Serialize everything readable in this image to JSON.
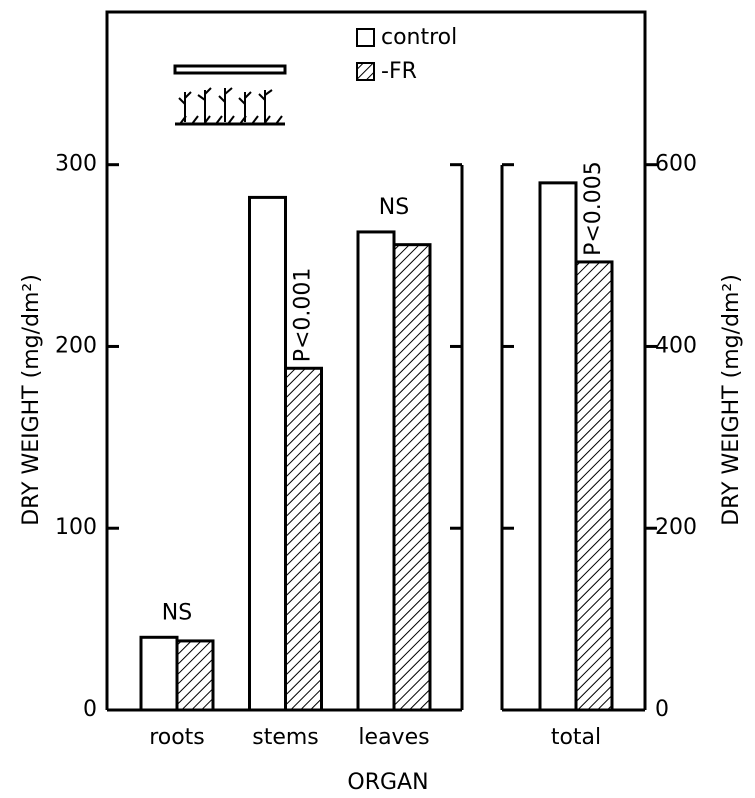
{
  "chart_data": [
    {
      "type": "bar",
      "ylabel": "DRY WEIGHT (mg/dm²)",
      "xlabel": "ORGAN",
      "categories": [
        "roots",
        "stems",
        "leaves"
      ],
      "series": [
        {
          "name": "control",
          "color": "#ffffff",
          "values": [
            40,
            282,
            263
          ]
        },
        {
          "name": "-FR",
          "color": "hatch",
          "values": [
            38,
            188,
            256
          ]
        }
      ],
      "annotations": [
        "NS",
        "P<0.001",
        "NS"
      ],
      "ylim": [
        0,
        384
      ],
      "yticks": [
        0,
        100,
        200,
        300
      ]
    },
    {
      "type": "bar",
      "ylabel": "DRY WEIGHT (mg/dm²)",
      "categories": [
        "total"
      ],
      "series": [
        {
          "name": "control",
          "color": "#ffffff",
          "values": [
            580
          ]
        },
        {
          "name": "-FR",
          "color": "hatch",
          "values": [
            493
          ]
        }
      ],
      "annotations": [
        "P<0.005"
      ],
      "ylim": [
        0,
        768
      ],
      "yticks": [
        0,
        200,
        400,
        600
      ]
    }
  ]
}
